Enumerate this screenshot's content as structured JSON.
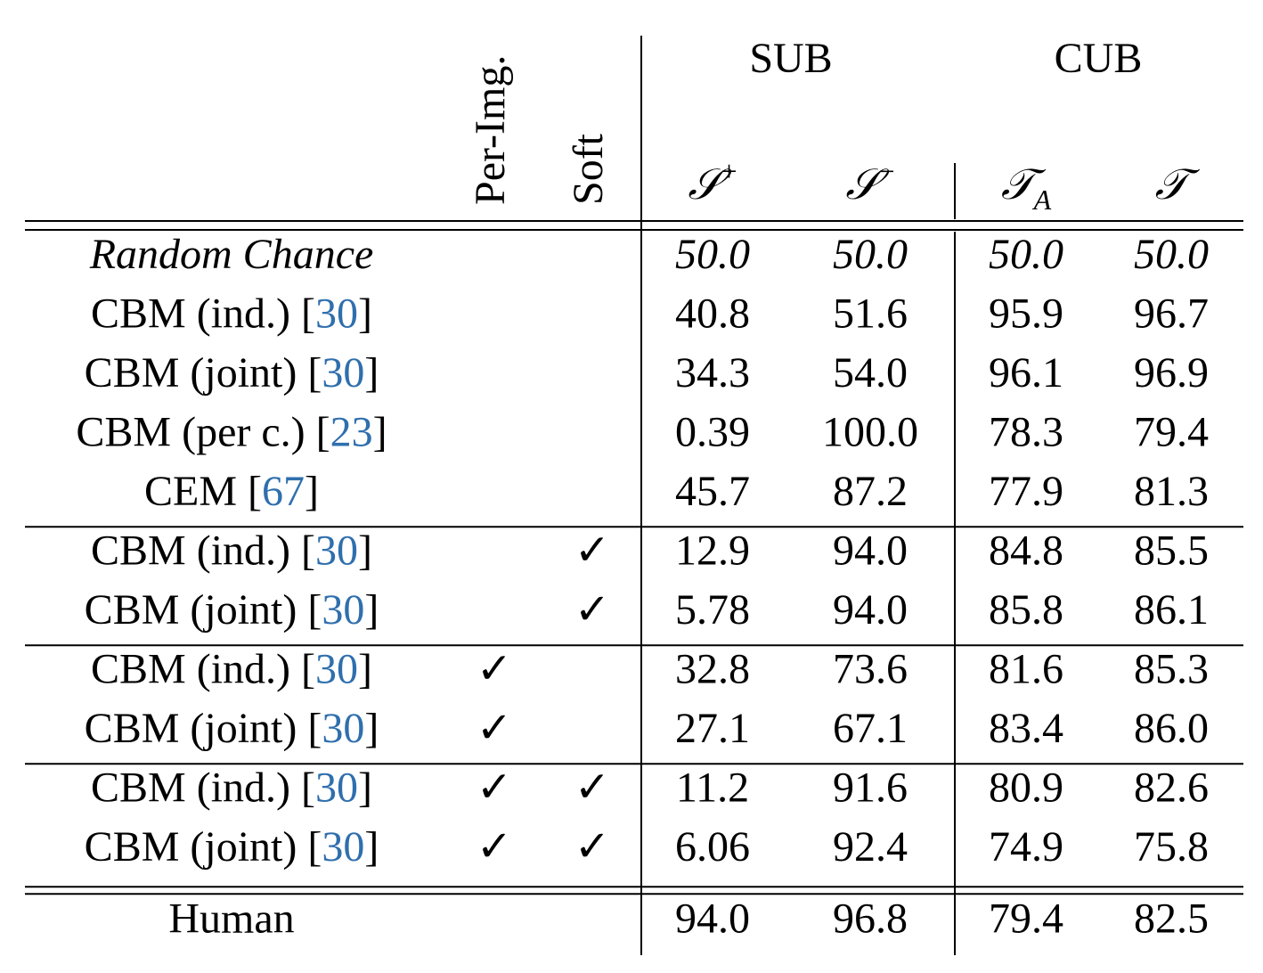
{
  "table": {
    "column_heads": [
      "Per-Img.",
      "Soft"
    ],
    "dataset_heads": [
      "SUB",
      "CUB"
    ],
    "metrics": [
      {
        "base": "𝒮",
        "sup": "+"
      },
      {
        "base": "𝒮",
        "sup": "−"
      },
      {
        "base": "𝒯",
        "sub": "A"
      },
      {
        "base": "𝒯"
      }
    ],
    "groups": [
      [
        {
          "method": [
            "Random Chance"
          ],
          "values": [
            "50.0",
            "50.0",
            "50.0",
            "50.0"
          ]
        },
        {
          "method": [
            "CBM (ind.) [",
            "30",
            "]"
          ],
          "values": [
            "40.8",
            "51.6",
            "95.9",
            "96.7"
          ]
        },
        {
          "method": [
            "CBM (joint) [",
            "30",
            "]"
          ],
          "values": [
            "34.3",
            "54.0",
            "96.1",
            "96.9"
          ]
        },
        {
          "method": [
            "CBM (per c.) [",
            "23",
            "]"
          ],
          "values": [
            "0.39",
            "100.0",
            "78.3",
            "79.4"
          ]
        },
        {
          "method": [
            "CEM [",
            "67",
            "]"
          ],
          "values": [
            "45.7",
            "87.2",
            "77.9",
            "81.3"
          ]
        }
      ],
      [
        {
          "method": [
            "CBM (ind.) [",
            "30",
            "]"
          ],
          "soft": "✓",
          "values": [
            "12.9",
            "94.0",
            "84.8",
            "85.5"
          ]
        },
        {
          "method": [
            "CBM (joint) [",
            "30",
            "]"
          ],
          "soft": "✓",
          "values": [
            "5.78",
            "94.0",
            "85.8",
            "86.1"
          ]
        }
      ],
      [
        {
          "method": [
            "CBM (ind.) [",
            "30",
            "]"
          ],
          "per_img": "✓",
          "values": [
            "32.8",
            "73.6",
            "81.6",
            "85.3"
          ]
        },
        {
          "method": [
            "CBM (joint) [",
            "30",
            "]"
          ],
          "per_img": "✓",
          "values": [
            "27.1",
            "67.1",
            "83.4",
            "86.0"
          ]
        }
      ],
      [
        {
          "method": [
            "CBM (ind.) [",
            "30",
            "]"
          ],
          "per_img": "✓",
          "soft": "✓",
          "values": [
            "11.2",
            "91.6",
            "80.9",
            "82.6"
          ]
        },
        {
          "method": [
            "CBM (joint) [",
            "30",
            "]"
          ],
          "per_img": "✓",
          "soft": "✓",
          "values": [
            "6.06",
            "92.4",
            "74.9",
            "75.8"
          ]
        }
      ],
      [
        {
          "method": [
            "Human"
          ],
          "values": [
            "94.0",
            "96.8",
            "79.4",
            "82.5"
          ]
        }
      ]
    ]
  }
}
